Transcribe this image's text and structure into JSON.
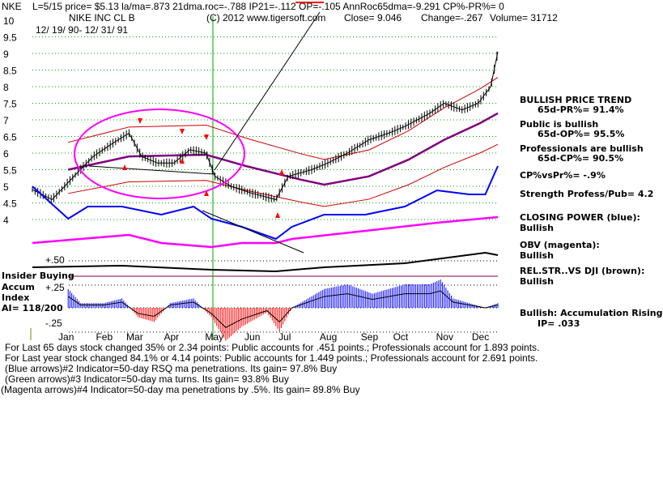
{
  "header": {
    "line1": "L=5/15  price= $5.13  la/ma=.873 21dma.roc=-.788 IP21=-.112 OP=-.105 AnnRoc65dma=-9.291 CP%-PR%=  0",
    "ticker": "NKE",
    "name": "NIKE INC CL B",
    "copyright": "(C) 2012 www.tigersoft.com",
    "close": "Close=  9.046",
    "change": "Change=-.267",
    "volume": "Volume=  31712",
    "dates": "12/ 19/ 90- 12/ 31/ 91"
  },
  "side": {
    "trend": "BULLISH PRICE TREND",
    "pr": "65d-PR%= 91.4%",
    "public": "Public is bullish",
    "op": "65d-OP%= 95.5%",
    "pros": "Professionals are bullish",
    "cp": "65d-CP%= 90.5%",
    "cpvspr": "CP%vsPr%= -.9%",
    "strength": "Strength Profess/Pub= 4.2",
    "closing": "CLOSING POWER (blue):",
    "closing_v": "Bullish",
    "obv": "OBV (magenta):",
    "obv_v": "Bullish",
    "relstr": "REL.STR..VS DJI (brown):",
    "relstr_v": "Bullish",
    "accum": "Bullish: Accumulation Rising",
    "ip": "IP=  .033"
  },
  "left": {
    "insider": "Insider Buying",
    "accum": "Accum",
    "index": "Index",
    "ai": "AI= 118/200",
    "p50": "+.50",
    "p25": "+.25",
    "m25": "-.25"
  },
  "footer": [
    "For Last 65 days stock changed  35% or  2.34 points:  Public accounts for  .451 points.;  Professionals account for  1.893 points.",
    "For Last year stock changed  84.1% or  4.14 points:  Public accounts for  1.449 points.;  Professionals account for  2.691 points.",
    "(Blue arrows)#2 Indicator=50-day RSQ ma penetrations. Its gain= 97.8% Buy",
    "(Green arrows)#3 Indicator=50-day ma turns. Its gain= 93.8% Buy",
    "(Magenta arrows)#4 Indicator=50-day ma penetrations by .5%. Its gain= 89.8% Buy"
  ],
  "chart_data": {
    "type": "line",
    "title": "NIKE INC CL B",
    "x_unit": "trading day index from 12/19/90",
    "xlim": [
      0,
      260
    ],
    "ylim": [
      4,
      10
    ],
    "yticks": [
      "10",
      "9.5",
      "9",
      "8.5",
      "8",
      "7.5",
      "7",
      "6.5",
      "6",
      "5.5",
      "5",
      "4.5",
      "4"
    ],
    "ytick_values": [
      10,
      9.5,
      9,
      8.5,
      8,
      7.5,
      7,
      6.5,
      6,
      5.5,
      5,
      4.5,
      4
    ],
    "months": [
      {
        "label": "Jan",
        "x": 19
      },
      {
        "label": "Feb",
        "x": 40
      },
      {
        "label": "Mar",
        "x": 57
      },
      {
        "label": "Apr",
        "x": 78
      },
      {
        "label": "May",
        "x": 101
      },
      {
        "label": "Jun",
        "x": 123
      },
      {
        "label": "Jul",
        "x": 142
      },
      {
        "label": "Aug",
        "x": 165
      },
      {
        "label": "Sep",
        "x": 188
      },
      {
        "label": "Oct",
        "x": 206
      },
      {
        "label": "Nov",
        "x": 230
      },
      {
        "label": "Dec",
        "x": 250
      }
    ],
    "price": [
      [
        0,
        4.9
      ],
      [
        11,
        4.6
      ],
      [
        25,
        5.4
      ],
      [
        34,
        5.9
      ],
      [
        45,
        6.3
      ],
      [
        54,
        6.6
      ],
      [
        61,
        5.9
      ],
      [
        70,
        5.7
      ],
      [
        79,
        5.7
      ],
      [
        88,
        6.1
      ],
      [
        97,
        6.0
      ],
      [
        102,
        5.3
      ],
      [
        111,
        5.0
      ],
      [
        122,
        4.8
      ],
      [
        136,
        4.6
      ],
      [
        143,
        5.3
      ],
      [
        156,
        5.5
      ],
      [
        165,
        5.7
      ],
      [
        176,
        6.0
      ],
      [
        188,
        6.4
      ],
      [
        199,
        6.6
      ],
      [
        208,
        6.8
      ],
      [
        222,
        7.2
      ],
      [
        230,
        7.5
      ],
      [
        240,
        7.3
      ],
      [
        249,
        7.5
      ],
      [
        256,
        8.0
      ],
      [
        260,
        9.05
      ]
    ],
    "ma50": [
      [
        20,
        5.5
      ],
      [
        54,
        5.9
      ],
      [
        97,
        5.95
      ],
      [
        120,
        5.6
      ],
      [
        150,
        5.2
      ],
      [
        163,
        5.05
      ],
      [
        188,
        5.3
      ],
      [
        210,
        5.8
      ],
      [
        230,
        6.4
      ],
      [
        250,
        6.9
      ],
      [
        260,
        7.2
      ]
    ],
    "band_factors": [
      1.15,
      0.87
    ],
    "closing_power": [
      [
        0,
        80
      ],
      [
        20,
        40
      ],
      [
        31,
        55
      ],
      [
        50,
        55
      ],
      [
        72,
        45
      ],
      [
        90,
        55
      ],
      [
        100,
        40
      ],
      [
        117,
        30
      ],
      [
        136,
        15
      ],
      [
        145,
        30
      ],
      [
        163,
        45
      ],
      [
        186,
        45
      ],
      [
        208,
        55
      ],
      [
        226,
        75
      ],
      [
        244,
        70
      ],
      [
        253,
        70
      ],
      [
        260,
        105
      ]
    ],
    "obv": [
      [
        0,
        10
      ],
      [
        27,
        15
      ],
      [
        54,
        20
      ],
      [
        72,
        10
      ],
      [
        100,
        5
      ],
      [
        117,
        10
      ],
      [
        136,
        10
      ],
      [
        145,
        15
      ],
      [
        186,
        25
      ],
      [
        226,
        35
      ],
      [
        260,
        42
      ]
    ],
    "rel_str_dji": [
      [
        0,
        10
      ],
      [
        50,
        12
      ],
      [
        100,
        7
      ],
      [
        136,
        5
      ],
      [
        163,
        10
      ],
      [
        208,
        15
      ],
      [
        253,
        28
      ],
      [
        260,
        25
      ]
    ],
    "accum_index": [
      [
        20,
        0.2
      ],
      [
        27,
        0.05
      ],
      [
        40,
        0.05
      ],
      [
        50,
        0.1
      ],
      [
        59,
        -0.1
      ],
      [
        68,
        -0.15
      ],
      [
        77,
        0.05
      ],
      [
        90,
        0.1
      ],
      [
        100,
        -0.1
      ],
      [
        108,
        -0.35
      ],
      [
        117,
        -0.2
      ],
      [
        131,
        -0.05
      ],
      [
        138,
        -0.25
      ],
      [
        145,
        0
      ],
      [
        163,
        0.2
      ],
      [
        176,
        0.25
      ],
      [
        190,
        0.15
      ],
      [
        208,
        0.25
      ],
      [
        222,
        0.25
      ],
      [
        228,
        0.3
      ],
      [
        235,
        0.1
      ],
      [
        244,
        0.05
      ],
      [
        253,
        0
      ],
      [
        260,
        0.05
      ]
    ],
    "colors": {
      "price": "#000000",
      "ma": "#800080",
      "bands": "#cc0000",
      "cp": "#0000ff",
      "obv": "#ff00ff",
      "relstr": "#000000",
      "grid": "#00a000",
      "ellipse": "#ff00ff"
    }
  }
}
